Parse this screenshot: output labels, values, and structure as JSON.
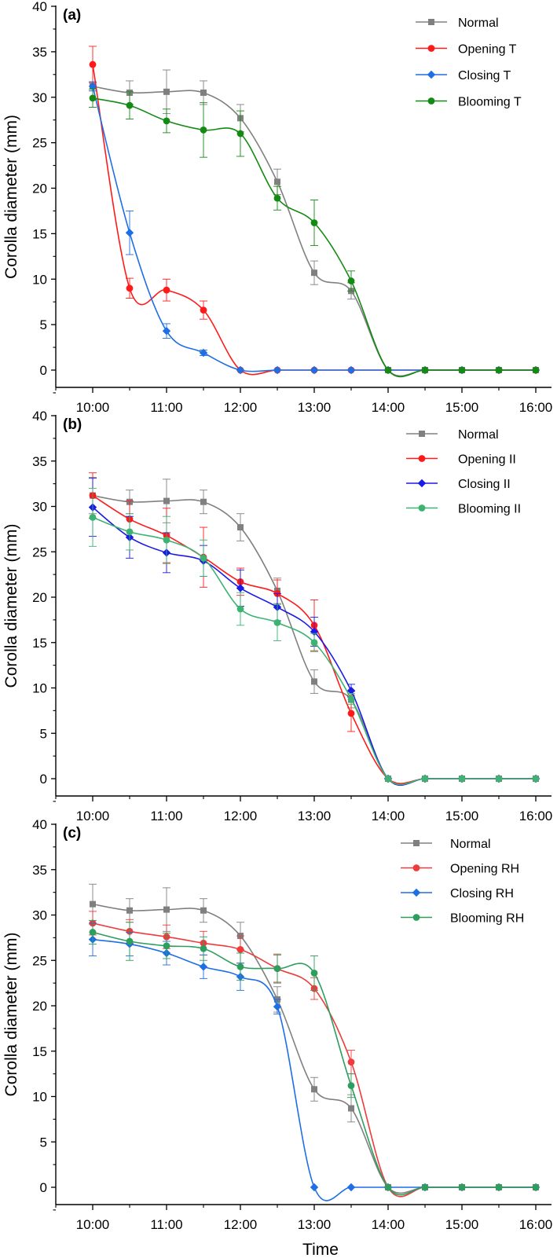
{
  "chart_data": [
    {
      "type": "line",
      "panel_label": "(a)",
      "ylabel": "Corolla diameter (mm)",
      "xlabel": "",
      "ylim": [
        0,
        40
      ],
      "yticks": [
        0,
        5,
        10,
        15,
        20,
        25,
        30,
        35,
        40
      ],
      "x": [
        10,
        10.5,
        11,
        11.5,
        12,
        12.5,
        13,
        13.5,
        14,
        14.5,
        15,
        15.5,
        16
      ],
      "xlim": [
        9.5,
        16.15
      ],
      "xtick_values": [
        10,
        11,
        12,
        13,
        14,
        15,
        16
      ],
      "xtick_labels": [
        "10:00",
        "11:00",
        "12:00",
        "13:00",
        "14:00",
        "15:00",
        "16:00"
      ],
      "grid": false,
      "legend_position": "top-right",
      "series": [
        {
          "name": "Normal",
          "color": "#808080",
          "marker": "square",
          "values": [
            31.2,
            30.5,
            30.6,
            30.5,
            27.7,
            20.7,
            10.7,
            8.7,
            0,
            0,
            0,
            0,
            0
          ],
          "errors": [
            0.5,
            1.3,
            2.4,
            1.3,
            1.5,
            1.4,
            1.3,
            0.9,
            0,
            0,
            0,
            0,
            0
          ]
        },
        {
          "name": "Opening T",
          "color": "#ff1a1a",
          "marker": "circle",
          "values": [
            33.6,
            9.0,
            8.8,
            6.6,
            0,
            0,
            0,
            0,
            0,
            0,
            0,
            0,
            0
          ],
          "errors": [
            2.0,
            1.1,
            1.2,
            1.0,
            0,
            0,
            0,
            0,
            0,
            0,
            0,
            0,
            0
          ]
        },
        {
          "name": "Closing T",
          "color": "#1e6ee6",
          "marker": "diamond",
          "values": [
            31.2,
            15.1,
            4.3,
            1.9,
            0,
            0,
            0,
            0,
            0,
            0,
            0,
            0,
            0
          ],
          "errors": [
            0.5,
            2.4,
            0.8,
            0.3,
            0,
            0,
            0,
            0,
            0,
            0,
            0,
            0,
            0
          ]
        },
        {
          "name": "Blooming T",
          "color": "#138a13",
          "marker": "circle",
          "values": [
            29.9,
            29.1,
            27.4,
            26.4,
            26.0,
            18.9,
            16.2,
            9.8,
            0,
            0,
            0,
            0,
            0
          ],
          "errors": [
            1.0,
            1.5,
            1.3,
            3.0,
            2.5,
            1.3,
            2.5,
            1.1,
            0,
            0,
            0,
            0,
            0
          ]
        }
      ]
    },
    {
      "type": "line",
      "panel_label": "(b)",
      "ylabel": "Corolla diameter (mm)",
      "xlabel": "",
      "ylim": [
        0,
        40
      ],
      "yticks": [
        0,
        5,
        10,
        15,
        20,
        25,
        30,
        35,
        40
      ],
      "x": [
        10,
        10.5,
        11,
        11.5,
        12,
        12.5,
        13,
        13.5,
        14,
        14.5,
        15,
        15.5,
        16
      ],
      "xlim": [
        9.5,
        16.15
      ],
      "xtick_values": [
        10,
        11,
        12,
        13,
        14,
        15,
        16
      ],
      "xtick_labels": [
        "10:00",
        "11:00",
        "12:00",
        "13:00",
        "14:00",
        "15:00",
        "16:00"
      ],
      "grid": false,
      "legend_position": "top-right",
      "series": [
        {
          "name": "Normal",
          "color": "#808080",
          "marker": "square",
          "values": [
            31.2,
            30.5,
            30.6,
            30.5,
            27.7,
            20.7,
            10.7,
            8.7,
            0,
            0,
            0,
            0,
            0
          ],
          "errors": [
            2.0,
            1.3,
            2.4,
            1.3,
            1.5,
            1.4,
            1.3,
            0.9,
            0,
            0,
            0,
            0,
            0
          ]
        },
        {
          "name": "Opening II",
          "color": "#ff1a1a",
          "marker": "circle",
          "values": [
            31.2,
            28.6,
            26.8,
            24.4,
            21.7,
            20.4,
            16.9,
            7.2,
            0,
            0,
            0,
            0,
            0
          ],
          "errors": [
            2.5,
            2.0,
            3.0,
            3.3,
            1.5,
            1.5,
            2.8,
            2.0,
            0,
            0,
            0,
            0,
            0
          ]
        },
        {
          "name": "Closing II",
          "color": "#1a1ae6",
          "marker": "diamond",
          "values": [
            29.9,
            26.6,
            24.9,
            24.0,
            21.0,
            18.9,
            16.2,
            9.7,
            0,
            0,
            0,
            0,
            0
          ],
          "errors": [
            3.2,
            2.3,
            2.2,
            1.7,
            2.0,
            1.5,
            1.6,
            0.7,
            0,
            0,
            0,
            0,
            0
          ]
        },
        {
          "name": "Blooming II",
          "color": "#3cb371",
          "marker": "circle",
          "values": [
            28.8,
            27.2,
            26.3,
            24.3,
            18.7,
            17.2,
            15.0,
            8.8,
            0,
            0,
            0,
            0,
            0
          ],
          "errors": [
            3.2,
            2.0,
            2.6,
            2.0,
            1.8,
            2.0,
            1.0,
            0.6,
            0,
            0,
            0,
            0,
            0
          ]
        }
      ]
    },
    {
      "type": "line",
      "panel_label": "(c)",
      "ylabel": "Corolla diameter (mm)",
      "xlabel": "Time",
      "ylim": [
        0,
        40
      ],
      "yticks": [
        0,
        5,
        10,
        15,
        20,
        25,
        30,
        35,
        40
      ],
      "x": [
        10,
        10.5,
        11,
        11.5,
        12,
        12.5,
        13,
        13.5,
        14,
        14.5,
        15,
        15.5,
        16
      ],
      "xlim": [
        9.5,
        16.15
      ],
      "xtick_values": [
        10,
        11,
        12,
        13,
        14,
        15,
        16
      ],
      "xtick_labels": [
        "10:00",
        "11:00",
        "12:00",
        "13:00",
        "14:00",
        "15:00",
        "16:00"
      ],
      "grid": false,
      "legend_position": "top-right",
      "series": [
        {
          "name": "Normal",
          "color": "#808080",
          "marker": "square",
          "values": [
            31.2,
            30.5,
            30.6,
            30.5,
            27.7,
            20.7,
            10.8,
            8.7,
            0,
            0,
            0,
            0,
            0
          ],
          "errors": [
            2.2,
            1.3,
            2.4,
            1.3,
            1.5,
            1.4,
            1.3,
            1.5,
            0,
            0,
            0,
            0,
            0
          ]
        },
        {
          "name": "Opening RH",
          "color": "#ee3b3b",
          "marker": "circle",
          "values": [
            29.1,
            28.2,
            27.6,
            26.9,
            26.2,
            24.1,
            21.9,
            13.8,
            0,
            0,
            0,
            0,
            0
          ],
          "errors": [
            1.3,
            1.3,
            1.3,
            1.3,
            1.5,
            1.5,
            1.2,
            1.3,
            0,
            0,
            0,
            0,
            0
          ]
        },
        {
          "name": "Closing RH",
          "color": "#1e6ee6",
          "marker": "diamond",
          "values": [
            27.3,
            26.8,
            25.8,
            24.3,
            23.2,
            19.9,
            0,
            0,
            0,
            0,
            0,
            0,
            0
          ],
          "errors": [
            1.8,
            1.3,
            1.3,
            1.3,
            1.5,
            0.8,
            0,
            0,
            0,
            0,
            0,
            0,
            0
          ]
        },
        {
          "name": "Blooming RH",
          "color": "#2e9e5e",
          "marker": "circle",
          "values": [
            28.1,
            27.1,
            26.6,
            26.3,
            24.3,
            24.1,
            23.6,
            11.2,
            0,
            0,
            0,
            0,
            0
          ],
          "errors": [
            1.3,
            2.1,
            1.4,
            1.3,
            1.5,
            1.6,
            1.9,
            1.3,
            0,
            0,
            0,
            0,
            0
          ]
        }
      ]
    }
  ]
}
